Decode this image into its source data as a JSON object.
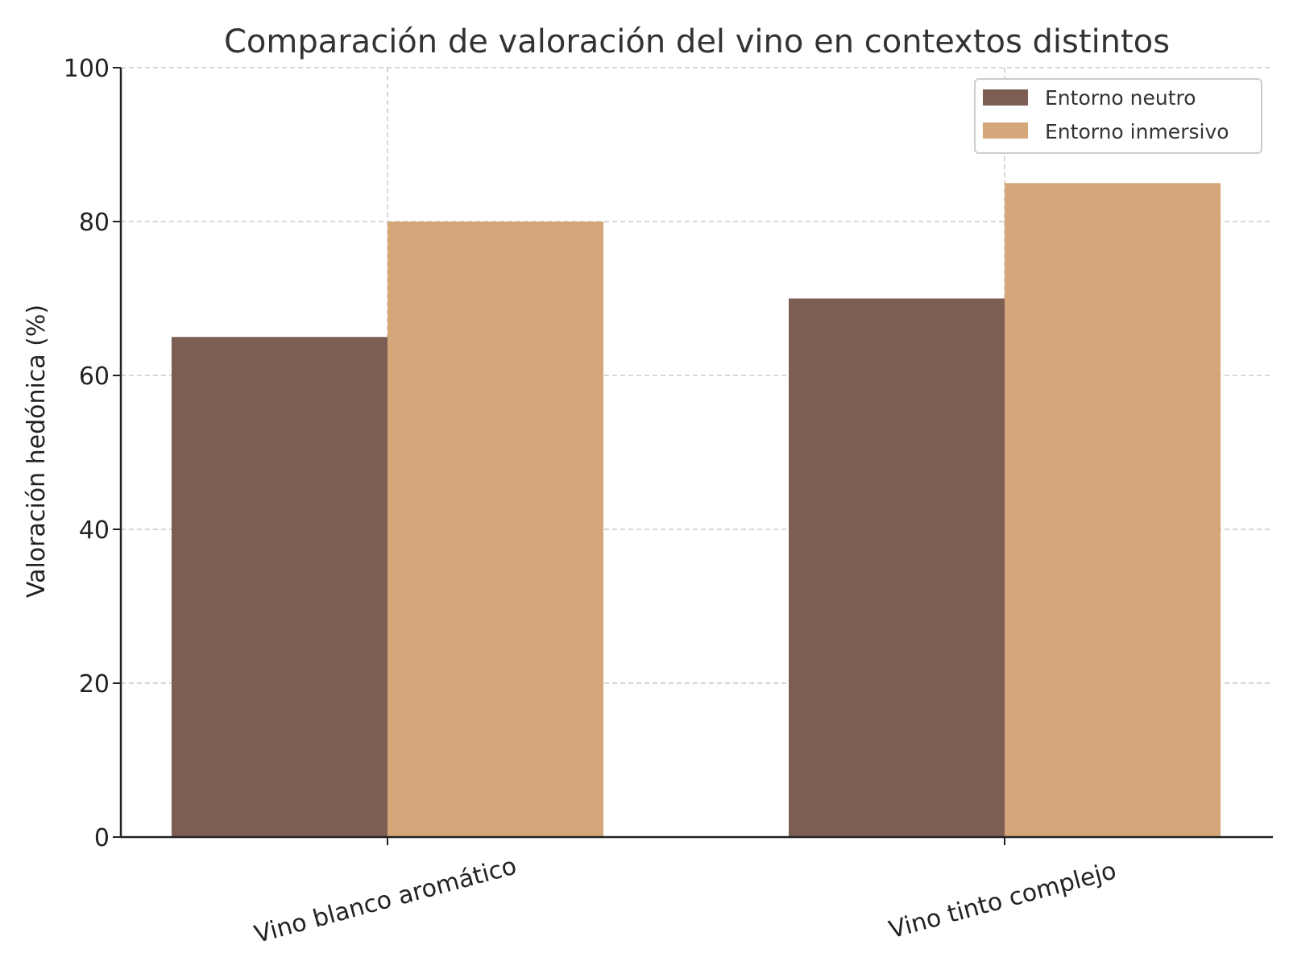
{
  "chart_data": {
    "type": "bar",
    "title": "Comparación de valoración del vino en contextos distintos",
    "xlabel": "",
    "ylabel": "Valoración hedónica (%)",
    "ylim": [
      0,
      100
    ],
    "yticks": [
      0,
      20,
      40,
      60,
      80,
      100
    ],
    "categories": [
      "Vino blanco aromático",
      "Vino tinto complejo"
    ],
    "series": [
      {
        "name": "Entorno neutro",
        "values": [
          65,
          70
        ],
        "color": "#7d5e53"
      },
      {
        "name": "Entorno inmersivo",
        "values": [
          80,
          85
        ],
        "color": "#d4a77a"
      }
    ],
    "grid": true,
    "legend_position": "top-right"
  }
}
